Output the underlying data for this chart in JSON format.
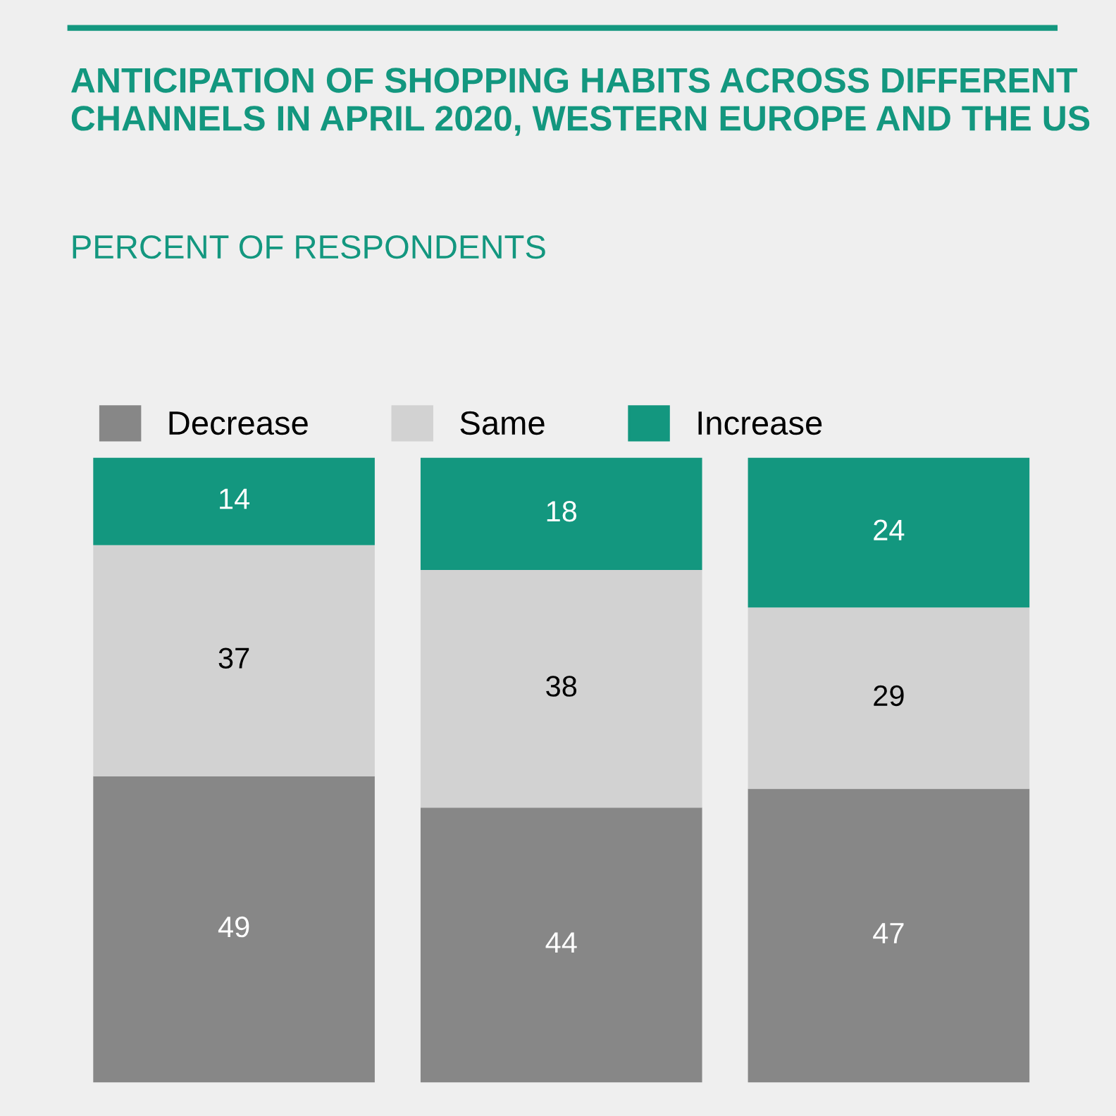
{
  "chart_data": {
    "type": "bar",
    "stacked": true,
    "data_labels": true,
    "legend": "top left",
    "grid": false,
    "title": "ANTICIPATION OF SHOPPING HABITS ACROSS DIFFERENT CHANNELS IN APRIL 2020, WESTERN EUROPE AND THE US",
    "subtitle": "PERCENT OF RESPONDENTS",
    "categories": [
      null,
      null,
      null
    ],
    "series": [
      {
        "name": "Decrease",
        "color": "#878787",
        "values": [
          49,
          44,
          47
        ]
      },
      {
        "name": "Same",
        "color": "#d2d2d2",
        "values": [
          37,
          38,
          29
        ]
      },
      {
        "name": "Increase",
        "color": "#13977f",
        "values": [
          14,
          18,
          24
        ]
      }
    ]
  }
}
